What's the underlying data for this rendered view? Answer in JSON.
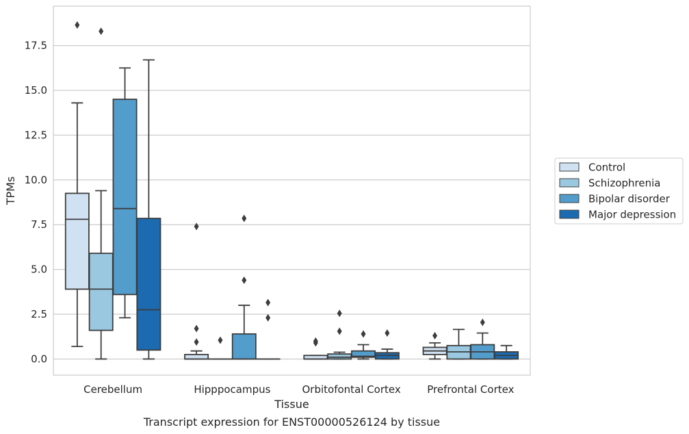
{
  "caption": "Transcript expression for ENST00000526124 by tissue",
  "chart_data": {
    "type": "box",
    "xlabel": "Tissue",
    "ylabel": "TPMs",
    "ylim": [
      -0.9,
      19.7
    ],
    "yticks": [
      "0.0",
      "2.5",
      "5.0",
      "7.5",
      "10.0",
      "12.5",
      "15.0",
      "17.5"
    ],
    "grid": "horizontal",
    "legend_position": "right",
    "categories": [
      "Cerebellum",
      "Hipppocampus",
      "Orbitofontal Cortex",
      "Prefrontal Cortex"
    ],
    "series": [
      {
        "name": "Control",
        "color": "#d0e1f2",
        "boxes": [
          {
            "whislo": 0.7,
            "q1": 3.9,
            "med": 7.8,
            "q3": 9.25,
            "whishi": 14.3,
            "fliers": [
              18.65
            ]
          },
          {
            "whislo": 0.0,
            "q1": 0.0,
            "med": 0.0,
            "q3": 0.25,
            "whishi": 0.45,
            "fliers": [
              0.95,
              1.7,
              7.4
            ]
          },
          {
            "whislo": 0.0,
            "q1": 0.0,
            "med": 0.0,
            "q3": 0.2,
            "whishi": 0.2,
            "fliers": [
              0.9,
              1.0
            ]
          },
          {
            "whislo": 0.0,
            "q1": 0.25,
            "med": 0.45,
            "q3": 0.65,
            "whishi": 0.9,
            "fliers": [
              1.3
            ]
          }
        ]
      },
      {
        "name": "Schizophrenia",
        "color": "#9ac8e0",
        "boxes": [
          {
            "whislo": 0.0,
            "q1": 1.6,
            "med": 3.9,
            "q3": 5.9,
            "whishi": 9.4,
            "fliers": [
              18.3
            ]
          },
          {
            "whislo": 0.0,
            "q1": 0.0,
            "med": 0.0,
            "q3": 0.0,
            "whishi": 0.0,
            "fliers": [
              1.05
            ]
          },
          {
            "whislo": 0.0,
            "q1": 0.0,
            "med": 0.1,
            "q3": 0.28,
            "whishi": 0.38,
            "fliers": [
              1.55,
              2.55
            ]
          },
          {
            "whislo": 0.0,
            "q1": 0.0,
            "med": 0.4,
            "q3": 0.75,
            "whishi": 1.65,
            "fliers": []
          }
        ]
      },
      {
        "name": "Bipolar disorder",
        "color": "#529dcc",
        "boxes": [
          {
            "whislo": 2.3,
            "q1": 3.6,
            "med": 8.4,
            "q3": 14.5,
            "whishi": 16.25,
            "fliers": []
          },
          {
            "whislo": 0.0,
            "q1": 0.0,
            "med": 0.0,
            "q3": 1.4,
            "whishi": 3.0,
            "fliers": [
              4.4,
              7.85
            ]
          },
          {
            "whislo": 0.0,
            "q1": 0.1,
            "med": 0.15,
            "q3": 0.45,
            "whishi": 0.8,
            "fliers": [
              1.4
            ]
          },
          {
            "whislo": 0.0,
            "q1": 0.0,
            "med": 0.4,
            "q3": 0.8,
            "whishi": 1.45,
            "fliers": [
              2.05
            ]
          }
        ]
      },
      {
        "name": "Major depression",
        "color": "#1c6aaf",
        "boxes": [
          {
            "whislo": 0.0,
            "q1": 0.5,
            "med": 2.75,
            "q3": 7.85,
            "whishi": 16.7,
            "fliers": []
          },
          {
            "whislo": 0.0,
            "q1": 0.0,
            "med": 0.0,
            "q3": 0.0,
            "whishi": 0.0,
            "fliers": [
              2.3,
              3.15
            ]
          },
          {
            "whislo": 0.0,
            "q1": 0.0,
            "med": 0.2,
            "q3": 0.35,
            "whishi": 0.55,
            "fliers": [
              1.45
            ]
          },
          {
            "whislo": 0.0,
            "q1": 0.0,
            "med": 0.2,
            "q3": 0.4,
            "whishi": 0.75,
            "fliers": []
          }
        ]
      }
    ]
  }
}
